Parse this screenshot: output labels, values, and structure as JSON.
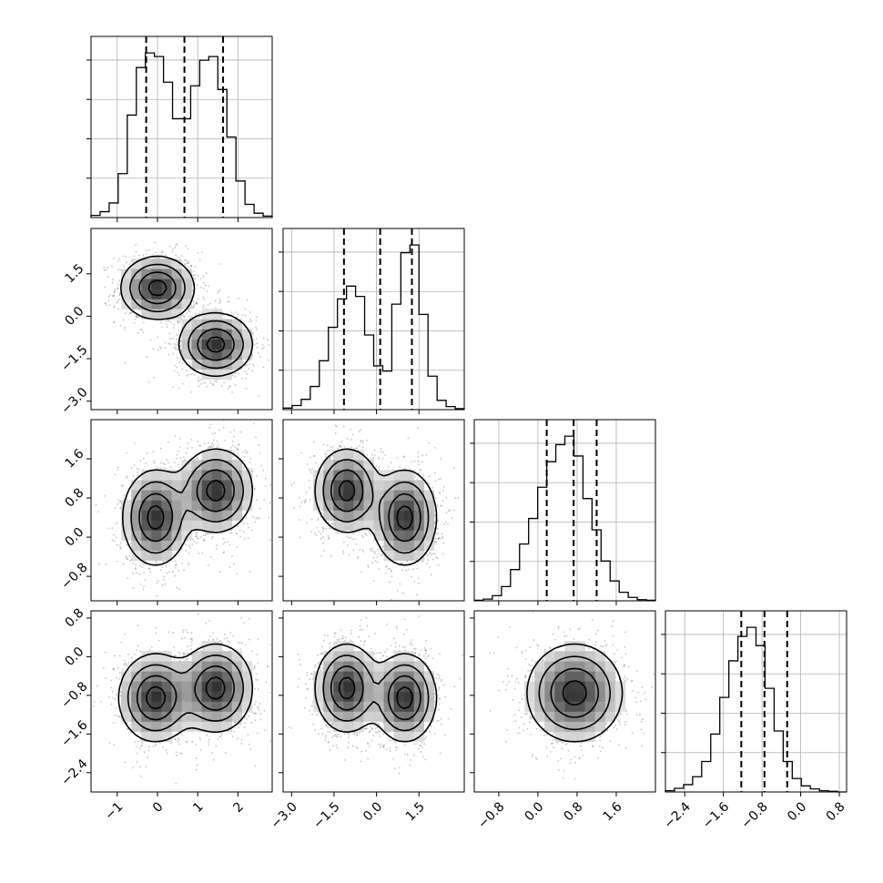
{
  "chart_data": {
    "type": "corner",
    "grid": true,
    "variables": [
      {
        "range": [
          -1.65,
          2.85
        ],
        "ticks": [
          -1,
          0,
          1,
          2
        ],
        "tick_labels": [
          "−1",
          "0",
          "1",
          "2"
        ]
      },
      {
        "range": [
          -3.3,
          3.1
        ],
        "ticks": [
          -3.0,
          -1.5,
          0.0,
          1.5
        ],
        "tick_labels": [
          "−3.0",
          "−1.5",
          "0.0",
          "1.5"
        ]
      },
      {
        "range": [
          -1.3,
          2.4
        ],
        "ticks": [
          -0.8,
          0.0,
          0.8,
          1.6
        ],
        "tick_labels": [
          "−0.8",
          "0.0",
          "0.8",
          "1.6"
        ]
      },
      {
        "range": [
          -2.8,
          0.95
        ],
        "ticks": [
          -2.4,
          -1.6,
          -0.8,
          0.0,
          0.8
        ],
        "tick_labels": [
          "−2.4",
          "−1.6",
          "−0.8",
          "0.0",
          "0.8"
        ]
      }
    ],
    "histograms": [
      {
        "variable": 0,
        "counts": [
          0.3,
          0.8,
          2.0,
          6.0,
          14.0,
          20.5,
          22.5,
          22.0,
          18.5,
          13.5,
          13.5,
          18.0,
          21.5,
          22.0,
          17.5,
          11.0,
          5.0,
          1.8,
          0.6,
          0.2
        ],
        "quantiles": [
          -0.28,
          0.67,
          1.63
        ]
      },
      {
        "variable": 1,
        "counts": [
          0.3,
          0.8,
          2.0,
          4.5,
          9.5,
          16.0,
          21.5,
          24.0,
          22.0,
          14.5,
          8.5,
          7.5,
          20.5,
          30.5,
          32.0,
          18.5,
          6.5,
          1.8,
          0.6,
          0.2
        ],
        "quantiles": [
          -1.15,
          0.13,
          1.25
        ]
      },
      {
        "variable": 2,
        "counts": [
          0.1,
          0.3,
          0.9,
          2.5,
          5.5,
          10.0,
          14.5,
          20.0,
          24.5,
          27.5,
          29.0,
          25.5,
          18.0,
          12.5,
          7.0,
          3.5,
          1.5,
          0.6,
          0.2,
          0.1
        ],
        "quantiles": [
          0.18,
          0.73,
          1.2
        ]
      },
      {
        "variable": 3,
        "counts": [
          0.2,
          0.6,
          1.2,
          2.5,
          5.0,
          9.5,
          15.5,
          21.5,
          25.5,
          27.0,
          24.0,
          17.0,
          10.0,
          5.0,
          2.2,
          1.0,
          0.5,
          0.2,
          0.1,
          0.0
        ],
        "quantiles": [
          -1.23,
          -0.75,
          -0.28
        ]
      }
    ],
    "pairs": [
      {
        "x": 0,
        "y": 1,
        "components": [
          {
            "mean": [
              0.0,
              1.0
            ],
            "sd": [
              0.45,
              0.55
            ],
            "rho": 0.0
          },
          {
            "mean": [
              1.45,
              -1.0
            ],
            "sd": [
              0.45,
              0.55
            ],
            "rho": 0.0
          }
        ]
      },
      {
        "x": 0,
        "y": 2,
        "components": [
          {
            "mean": [
              -0.05,
              0.4
            ],
            "sd": [
              0.4,
              0.48
            ],
            "rho": 0.0
          },
          {
            "mean": [
              1.45,
              0.95
            ],
            "sd": [
              0.45,
              0.42
            ],
            "rho": 0.0
          }
        ]
      },
      {
        "x": 1,
        "y": 2,
        "components": [
          {
            "mean": [
              -1.05,
              0.95
            ],
            "sd": [
              0.55,
              0.42
            ],
            "rho": 0.0
          },
          {
            "mean": [
              1.0,
              0.4
            ],
            "sd": [
              0.55,
              0.48
            ],
            "rho": 0.0
          }
        ]
      },
      {
        "x": 0,
        "y": 3,
        "components": [
          {
            "mean": [
              -0.05,
              -0.85
            ],
            "sd": [
              0.45,
              0.45
            ],
            "rho": 0.0
          },
          {
            "mean": [
              1.45,
              -0.65
            ],
            "sd": [
              0.45,
              0.45
            ],
            "rho": 0.0
          }
        ]
      },
      {
        "x": 1,
        "y": 3,
        "components": [
          {
            "mean": [
              -1.05,
              -0.65
            ],
            "sd": [
              0.55,
              0.45
            ],
            "rho": 0.0
          },
          {
            "mean": [
              1.0,
              -0.85
            ],
            "sd": [
              0.55,
              0.45
            ],
            "rho": 0.0
          }
        ]
      },
      {
        "x": 2,
        "y": 3,
        "components": [
          {
            "mean": [
              0.75,
              -0.75
            ],
            "sd": [
              0.48,
              0.5
            ],
            "rho": 0.0
          }
        ]
      }
    ]
  }
}
